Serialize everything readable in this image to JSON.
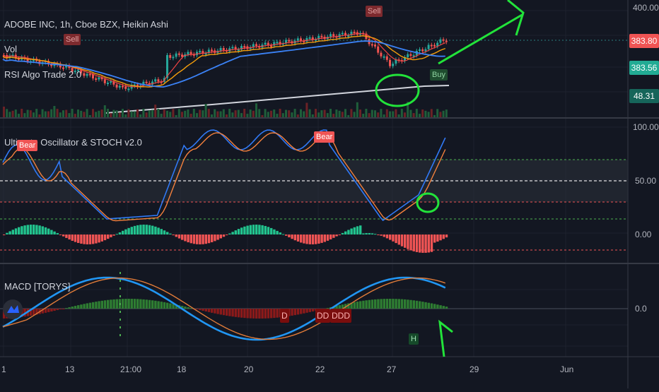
{
  "header": {
    "symbol_title": "ADOBE INC, 1h, Cboe BZX, Heikin Ashi",
    "vol_label": "Vol",
    "indicator_1": "RSI Algo Trade 2.0"
  },
  "panes": {
    "oscillator_title": "Ultimate Oscillator & STOCH v2.0",
    "macd_title": "MACD [TORYS]"
  },
  "price_axis": {
    "ticks": [
      "400.00",
      "100.00",
      "50.00",
      "0.00",
      "0.0"
    ],
    "tags": [
      {
        "value": "383.80",
        "color": "#f05454"
      },
      {
        "value": "383.56",
        "color": "#22ab94"
      },
      {
        "value": "48.31",
        "color": "#16655a"
      }
    ]
  },
  "time_axis": {
    "ticks": [
      "1",
      "13",
      "21:00",
      "18",
      "20",
      "22",
      "27",
      "29",
      "Jun"
    ]
  },
  "signals": {
    "sell": [
      "Sell",
      "Sell"
    ],
    "buy": [
      "Buy"
    ],
    "bear": [
      "Bear",
      "Bear"
    ],
    "macd": [
      "D",
      "DD",
      "DDD"
    ],
    "macd_h": "H"
  },
  "colors": {
    "background": "#131722",
    "up": "#26a69a",
    "down": "#ef5350",
    "annotation": "#22e33a",
    "stoch_fast": "#3179f5",
    "stoch_slow": "#f5813d"
  }
}
